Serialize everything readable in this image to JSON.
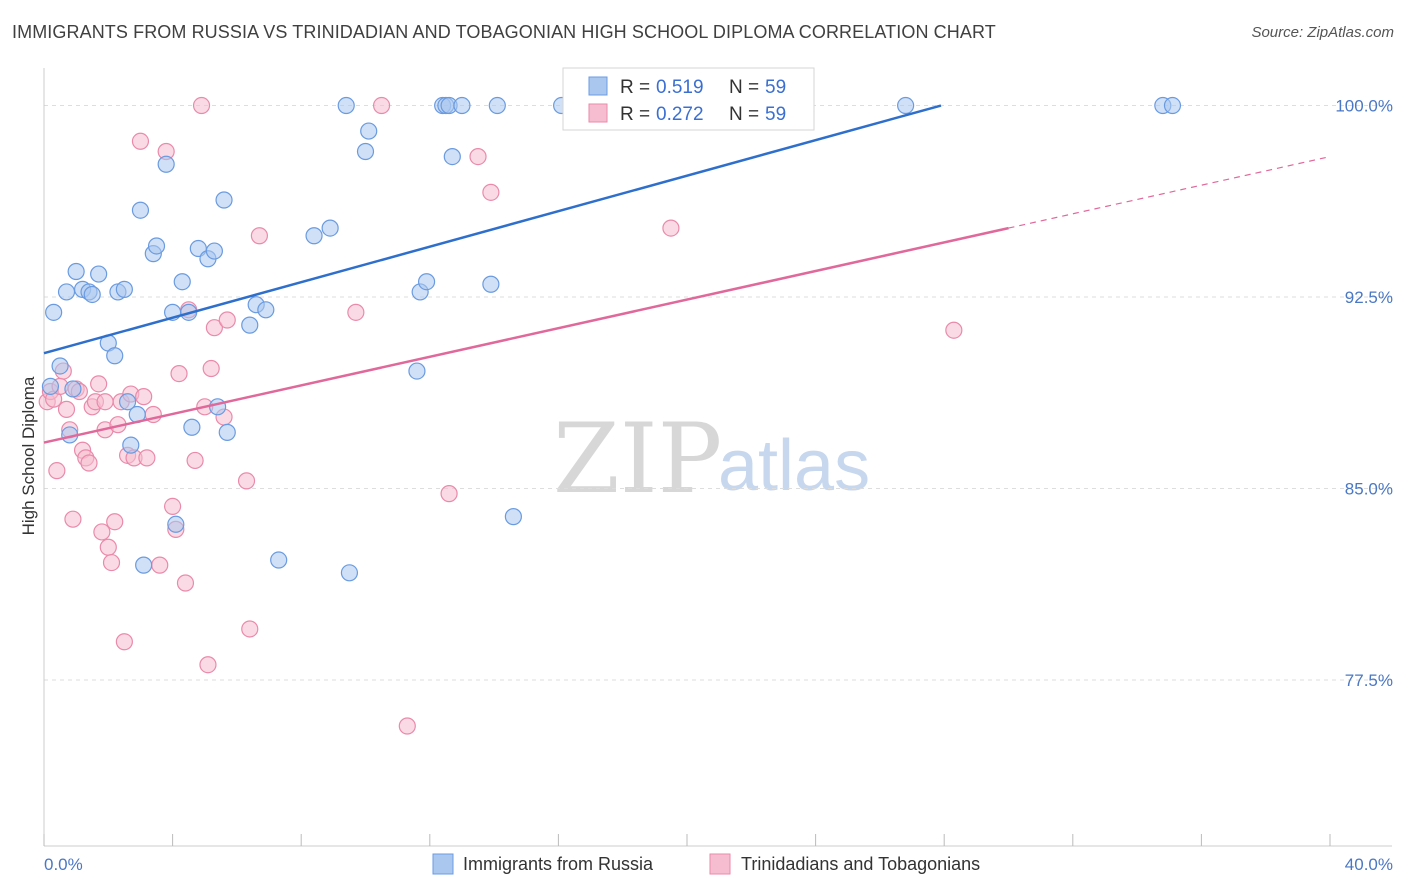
{
  "title": "IMMIGRANTS FROM RUSSIA VS TRINIDADIAN AND TOBAGONIAN HIGH SCHOOL DIPLOMA CORRELATION CHART",
  "source": "Source: ZipAtlas.com",
  "watermark": {
    "zip": "ZIP",
    "atlas": "atlas"
  },
  "colors": {
    "blue_fill": "#a9c7ef",
    "blue_stroke": "#6a9be0",
    "blue_line": "#2f6fcc",
    "pink_fill": "#f6bdd0",
    "pink_stroke": "#ea8aab",
    "pink_line": "#e0689a",
    "axis_text": "#4a78c4",
    "grid": "#dddddd"
  },
  "legend": {
    "rows": [
      {
        "r_label": "R =",
        "r_value": "0.519",
        "n_label": "N =",
        "n_value": "59"
      },
      {
        "r_label": "R =",
        "r_value": "0.272",
        "n_label": "N =",
        "n_value": "59"
      }
    ]
  },
  "chart_data": {
    "type": "scatter",
    "xlabel": "",
    "ylabel": "High School Diploma",
    "xlim": [
      0.0,
      40.0
    ],
    "ylim": [
      71.0,
      101.0
    ],
    "x_tick_labels": [
      "0.0%",
      "40.0%"
    ],
    "y_ticks": [
      77.5,
      85.0,
      92.5,
      100.0
    ],
    "y_tick_labels": [
      "77.5%",
      "85.0%",
      "92.5%",
      "100.0%"
    ],
    "grid": true,
    "series": [
      {
        "name": "Immigrants from Russia",
        "color": "#a9c7ef",
        "R": 0.519,
        "N": 59,
        "trend": {
          "x0": 0.0,
          "y0": 90.3,
          "x1": 27.9,
          "y1": 100.0,
          "dashed_to": null
        },
        "points": [
          [
            0.2,
            89.0
          ],
          [
            0.3,
            91.9
          ],
          [
            0.5,
            89.8
          ],
          [
            0.7,
            92.7
          ],
          [
            0.8,
            87.1
          ],
          [
            0.9,
            88.9
          ],
          [
            1.0,
            93.5
          ],
          [
            1.2,
            92.8
          ],
          [
            1.4,
            92.7
          ],
          [
            1.5,
            92.6
          ],
          [
            1.7,
            93.4
          ],
          [
            2.0,
            90.7
          ],
          [
            2.2,
            90.2
          ],
          [
            2.3,
            92.7
          ],
          [
            2.5,
            92.8
          ],
          [
            2.6,
            88.4
          ],
          [
            2.7,
            86.7
          ],
          [
            2.9,
            87.9
          ],
          [
            3.0,
            95.9
          ],
          [
            3.1,
            82.0
          ],
          [
            3.4,
            94.2
          ],
          [
            3.5,
            94.5
          ],
          [
            3.8,
            97.7
          ],
          [
            4.0,
            91.9
          ],
          [
            4.1,
            83.6
          ],
          [
            4.3,
            93.1
          ],
          [
            4.5,
            91.9
          ],
          [
            4.6,
            87.4
          ],
          [
            4.8,
            94.4
          ],
          [
            5.1,
            94.0
          ],
          [
            5.3,
            94.3
          ],
          [
            5.4,
            88.2
          ],
          [
            5.6,
            96.3
          ],
          [
            5.7,
            87.2
          ],
          [
            6.4,
            91.4
          ],
          [
            6.6,
            92.2
          ],
          [
            6.9,
            92.0
          ],
          [
            7.3,
            82.2
          ],
          [
            8.4,
            94.9
          ],
          [
            8.9,
            95.2
          ],
          [
            9.4,
            100.0
          ],
          [
            9.5,
            81.7
          ],
          [
            10.0,
            98.2
          ],
          [
            10.1,
            99.0
          ],
          [
            11.6,
            89.6
          ],
          [
            11.7,
            92.7
          ],
          [
            11.9,
            93.1
          ],
          [
            12.4,
            100.0
          ],
          [
            12.5,
            100.0
          ],
          [
            12.6,
            100.0
          ],
          [
            12.7,
            98.0
          ],
          [
            13.0,
            100.0
          ],
          [
            13.9,
            93.0
          ],
          [
            14.1,
            100.0
          ],
          [
            14.6,
            83.9
          ],
          [
            16.1,
            100.0
          ],
          [
            17.4,
            100.0
          ],
          [
            26.8,
            100.0
          ],
          [
            34.8,
            100.0
          ],
          [
            35.1,
            100.0
          ]
        ]
      },
      {
        "name": "Trinidadians and Tobagonians",
        "color": "#f6bdd0",
        "R": 0.272,
        "N": 59,
        "trend": {
          "x0": 0.0,
          "y0": 86.8,
          "x1": 30.0,
          "y1": 95.2,
          "dashed_to": {
            "x": 40.0,
            "y": 98.0
          }
        },
        "points": [
          [
            0.1,
            88.4
          ],
          [
            0.2,
            88.8
          ],
          [
            0.3,
            88.5
          ],
          [
            0.4,
            85.7
          ],
          [
            0.5,
            89.0
          ],
          [
            0.6,
            89.6
          ],
          [
            0.8,
            87.3
          ],
          [
            0.9,
            83.8
          ],
          [
            1.0,
            88.9
          ],
          [
            1.1,
            88.8
          ],
          [
            1.2,
            86.5
          ],
          [
            1.3,
            86.2
          ],
          [
            1.4,
            86.0
          ],
          [
            1.5,
            88.2
          ],
          [
            1.6,
            88.4
          ],
          [
            1.7,
            89.1
          ],
          [
            1.8,
            83.3
          ],
          [
            1.9,
            87.3
          ],
          [
            2.0,
            82.7
          ],
          [
            2.1,
            82.1
          ],
          [
            2.2,
            83.7
          ],
          [
            2.3,
            87.5
          ],
          [
            2.4,
            88.4
          ],
          [
            2.5,
            79.0
          ],
          [
            2.6,
            86.3
          ],
          [
            2.7,
            88.7
          ],
          [
            2.8,
            86.2
          ],
          [
            3.0,
            98.6
          ],
          [
            3.1,
            88.6
          ],
          [
            3.2,
            86.2
          ],
          [
            3.6,
            82.0
          ],
          [
            3.8,
            98.2
          ],
          [
            4.0,
            84.3
          ],
          [
            4.1,
            83.4
          ],
          [
            4.2,
            89.5
          ],
          [
            4.4,
            81.3
          ],
          [
            4.5,
            92.0
          ],
          [
            4.7,
            86.1
          ],
          [
            4.9,
            100.0
          ],
          [
            5.0,
            88.2
          ],
          [
            5.1,
            78.1
          ],
          [
            5.2,
            89.7
          ],
          [
            5.3,
            91.3
          ],
          [
            5.6,
            87.8
          ],
          [
            5.7,
            91.6
          ],
          [
            6.3,
            85.3
          ],
          [
            6.4,
            79.5
          ],
          [
            6.7,
            94.9
          ],
          [
            9.7,
            91.9
          ],
          [
            10.5,
            100.0
          ],
          [
            11.3,
            75.7
          ],
          [
            12.6,
            84.8
          ],
          [
            13.5,
            98.0
          ],
          [
            13.9,
            96.6
          ],
          [
            19.5,
            95.2
          ],
          [
            28.3,
            91.2
          ],
          [
            1.9,
            88.4
          ],
          [
            3.4,
            87.9
          ],
          [
            0.7,
            88.1
          ]
        ]
      }
    ]
  }
}
